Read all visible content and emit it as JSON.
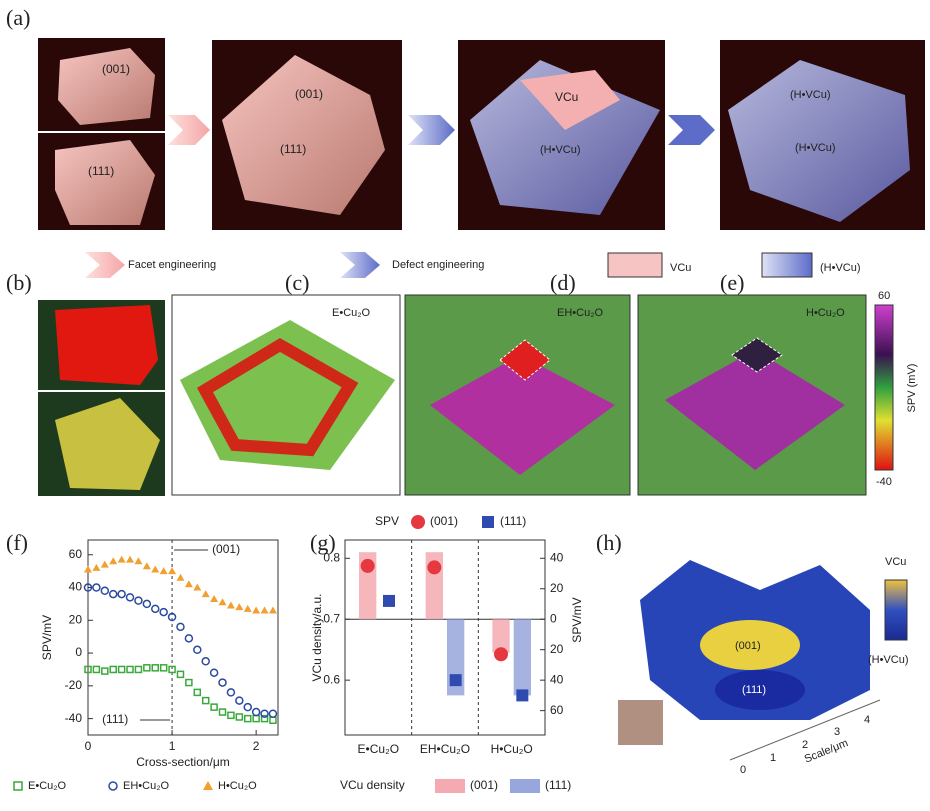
{
  "panels": {
    "a": {
      "label": "(a)",
      "top_facet": "(001)",
      "side_facet": "(111)",
      "big_top": "(001)",
      "big_side": "(111)",
      "third_top": "VCu",
      "third_side": "(H•VCu)",
      "fourth_top": "(H•VCu)",
      "fourth_side": "(H•VCu)",
      "facet_engineering": "Facet engineering",
      "defect_engineering": "Defect engineering",
      "legend_vcu": "VCu",
      "legend_hvcu": "(H•VCu)"
    },
    "b": {
      "label": "(b)"
    },
    "c": {
      "label": "(c)",
      "sample": "E•Cu₂O"
    },
    "d": {
      "label": "(d)",
      "sample": "EH•Cu₂O"
    },
    "e": {
      "label": "(e)",
      "sample": "H•Cu₂O"
    },
    "colorbar": {
      "max": "60",
      "min": "-40",
      "label": "SPV (mV)"
    },
    "h": {
      "label": "(h)",
      "top": "VCu",
      "bottom": "(H•VCu)",
      "facet_001": "(001)",
      "facet_111": "(111)",
      "axis_label": "Scale/μm",
      "ticks": [
        "0",
        "1",
        "2",
        "3",
        "4"
      ]
    }
  },
  "chart_data": [
    {
      "type": "scatter",
      "label": "(f)",
      "xlabel": "Cross-section/μm",
      "ylabel": "SPV/mV",
      "x": [
        0,
        0.1,
        0.2,
        0.3,
        0.4,
        0.5,
        0.6,
        0.7,
        0.8,
        0.9,
        1.0,
        1.1,
        1.2,
        1.3,
        1.4,
        1.5,
        1.6,
        1.7,
        1.8,
        1.9,
        2.0,
        2.1,
        2.2
      ],
      "series": [
        {
          "name": "E•Cu₂O",
          "color": "#3aa83a",
          "marker": "square",
          "values": [
            -10,
            -10,
            -11,
            -10,
            -10,
            -10,
            -10,
            -9,
            -9,
            -9,
            -10,
            -13,
            -18,
            -24,
            -29,
            -33,
            -36,
            -38,
            -39,
            -40,
            -40,
            -40,
            -41
          ]
        },
        {
          "name": "EH•Cu₂O",
          "color": "#2a4aa0",
          "marker": "circle",
          "values": [
            40,
            40,
            38,
            36,
            36,
            34,
            32,
            30,
            27,
            25,
            22,
            16,
            9,
            2,
            -5,
            -12,
            -18,
            -24,
            -29,
            -33,
            -36,
            -37,
            -37
          ]
        },
        {
          "name": "H•Cu₂O",
          "color": "#f0a030",
          "marker": "triangle",
          "values": [
            51,
            52,
            54,
            56,
            57,
            57,
            56,
            53,
            51,
            50,
            50,
            46,
            42,
            40,
            36,
            33,
            31,
            29,
            28,
            27,
            26,
            26,
            26
          ]
        }
      ],
      "xlim": [
        0,
        2.26
      ],
      "xticks": [
        0,
        1,
        2
      ],
      "ylim": [
        -50,
        69
      ],
      "yticks": [
        -40,
        -20,
        0,
        20,
        40,
        60
      ],
      "divider_x": 1,
      "annotations": [
        "(001)",
        "(111)"
      ]
    },
    {
      "type": "bar",
      "label": "(g)",
      "categories": [
        "E•Cu₂O",
        "EH•Cu₂O",
        "H•Cu₂O"
      ],
      "ylabel": "VCu density/a.u.",
      "y2label": "SPV/mV",
      "spv_legend": "SPV",
      "density_legend": "VCu density",
      "series": [
        {
          "name": "(001)",
          "color": "#f4aab0",
          "values": [
            0.81,
            0.81,
            0.645
          ]
        },
        {
          "name": "(111)",
          "color": "#97a6dc",
          "values": [
            0.7,
            0.575,
            0.575
          ]
        },
        {
          "name": "(001)",
          "color": "#e5383f",
          "values": [
            35,
            34,
            -23
          ],
          "axis": "y2"
        },
        {
          "name": "(111)",
          "color": "#2f4bb0",
          "values": [
            12,
            -40,
            -50
          ],
          "axis": "y2"
        }
      ],
      "ylim": [
        0.51,
        0.83
      ],
      "yticks": [
        0.6,
        0.7,
        0.8
      ],
      "baseline": 0.7,
      "y2lim": [
        -76,
        52
      ],
      "y2ticks": [
        40,
        20,
        0,
        {
          "value": -20,
          "label": "20"
        },
        {
          "value": -40,
          "label": "40"
        },
        {
          "value": -60,
          "label": "60"
        }
      ]
    }
  ]
}
